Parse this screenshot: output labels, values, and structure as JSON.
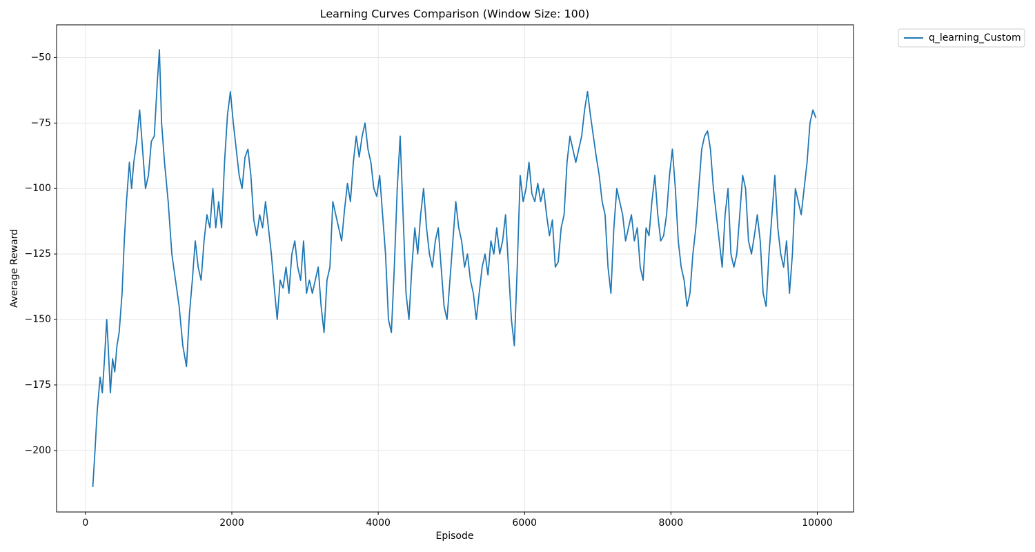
{
  "chart_data": {
    "type": "line",
    "title": "Learning Curves Comparison (Window Size: 100)",
    "xlabel": "Episode",
    "ylabel": "Average Reward",
    "xlim": [
      -395,
      10495
    ],
    "ylim": [
      -223.5,
      -37.5
    ],
    "xticks": [
      0,
      2000,
      4000,
      6000,
      8000,
      10000
    ],
    "yticks": [
      {
        "value": -50,
        "label": "−50"
      },
      {
        "value": -75,
        "label": "−75"
      },
      {
        "value": -100,
        "label": "−100"
      },
      {
        "value": -125,
        "label": "−125"
      },
      {
        "value": -150,
        "label": "−150"
      },
      {
        "value": -175,
        "label": "−175"
      },
      {
        "value": -200,
        "label": "−200"
      }
    ],
    "grid": true,
    "legend": "upper right",
    "x": [
      100,
      130,
      160,
      200,
      230,
      260,
      290,
      310,
      340,
      370,
      400,
      430,
      460,
      500,
      530,
      560,
      600,
      630,
      660,
      700,
      740,
      780,
      820,
      860,
      900,
      940,
      980,
      1010,
      1040,
      1080,
      1130,
      1180,
      1230,
      1280,
      1330,
      1380,
      1420,
      1460,
      1500,
      1540,
      1580,
      1620,
      1660,
      1700,
      1740,
      1780,
      1820,
      1860,
      1900,
      1940,
      1980,
      2020,
      2060,
      2100,
      2140,
      2180,
      2220,
      2260,
      2300,
      2340,
      2380,
      2420,
      2460,
      2500,
      2540,
      2580,
      2620,
      2660,
      2700,
      2740,
      2780,
      2820,
      2860,
      2900,
      2940,
      2980,
      3020,
      3060,
      3100,
      3140,
      3180,
      3220,
      3260,
      3300,
      3340,
      3380,
      3420,
      3460,
      3500,
      3540,
      3580,
      3620,
      3660,
      3700,
      3740,
      3780,
      3820,
      3860,
      3900,
      3940,
      3980,
      4020,
      4060,
      4100,
      4140,
      4180,
      4220,
      4260,
      4300,
      4340,
      4380,
      4420,
      4460,
      4500,
      4540,
      4580,
      4620,
      4660,
      4700,
      4740,
      4780,
      4820,
      4860,
      4900,
      4940,
      4980,
      5020,
      5060,
      5100,
      5140,
      5180,
      5220,
      5260,
      5300,
      5340,
      5380,
      5420,
      5460,
      5500,
      5540,
      5580,
      5620,
      5660,
      5700,
      5740,
      5780,
      5820,
      5860,
      5900,
      5940,
      5980,
      6020,
      6060,
      6100,
      6140,
      6180,
      6220,
      6260,
      6300,
      6340,
      6380,
      6420,
      6460,
      6500,
      6540,
      6580,
      6620,
      6660,
      6700,
      6740,
      6780,
      6820,
      6860,
      6900,
      6940,
      6980,
      7020,
      7060,
      7100,
      7140,
      7180,
      7220,
      7260,
      7300,
      7340,
      7380,
      7420,
      7460,
      7500,
      7540,
      7580,
      7620,
      7660,
      7700,
      7740,
      7780,
      7820,
      7860,
      7900,
      7940,
      7980,
      8020,
      8060,
      8100,
      8140,
      8180,
      8220,
      8260,
      8300,
      8340,
      8380,
      8420,
      8460,
      8500,
      8540,
      8580,
      8620,
      8660,
      8700,
      8740,
      8780,
      8820,
      8860,
      8900,
      8940,
      8980,
      9020,
      9060,
      9100,
      9140,
      9180,
      9220,
      9260,
      9300,
      9340,
      9380,
      9420,
      9460,
      9500,
      9540,
      9580,
      9620,
      9660,
      9700,
      9740,
      9780,
      9820,
      9860,
      9900,
      9940,
      9980
    ],
    "series": [
      {
        "name": "q_learning_Custom",
        "color": "#1f77b4",
        "values": [
          -214,
          -200,
          -185,
          -172,
          -178,
          -165,
          -150,
          -160,
          -178,
          -165,
          -170,
          -160,
          -155,
          -140,
          -120,
          -105,
          -90,
          -100,
          -90,
          -82,
          -70,
          -85,
          -100,
          -95,
          -82,
          -80,
          -60,
          -47,
          -75,
          -90,
          -105,
          -125,
          -135,
          -145,
          -160,
          -168,
          -148,
          -135,
          -120,
          -130,
          -135,
          -120,
          -110,
          -115,
          -100,
          -115,
          -105,
          -115,
          -90,
          -72,
          -63,
          -75,
          -85,
          -95,
          -100,
          -88,
          -85,
          -95,
          -112,
          -118,
          -110,
          -115,
          -105,
          -115,
          -125,
          -138,
          -150,
          -135,
          -138,
          -130,
          -140,
          -125,
          -120,
          -130,
          -135,
          -120,
          -140,
          -135,
          -140,
          -135,
          -130,
          -145,
          -155,
          -135,
          -130,
          -105,
          -110,
          -115,
          -120,
          -108,
          -98,
          -105,
          -90,
          -80,
          -88,
          -80,
          -75,
          -85,
          -90,
          -100,
          -103,
          -95,
          -110,
          -125,
          -150,
          -155,
          -130,
          -100,
          -80,
          -110,
          -140,
          -150,
          -130,
          -115,
          -125,
          -110,
          -100,
          -115,
          -125,
          -130,
          -120,
          -115,
          -130,
          -145,
          -150,
          -135,
          -120,
          -105,
          -115,
          -120,
          -130,
          -125,
          -135,
          -140,
          -150,
          -140,
          -130,
          -125,
          -133,
          -120,
          -125,
          -115,
          -125,
          -120,
          -110,
          -130,
          -150,
          -160,
          -130,
          -95,
          -105,
          -100,
          -90,
          -102,
          -105,
          -98,
          -105,
          -100,
          -110,
          -118,
          -112,
          -130,
          -128,
          -115,
          -110,
          -90,
          -80,
          -85,
          -90,
          -85,
          -80,
          -70,
          -63,
          -72,
          -80,
          -88,
          -95,
          -105,
          -110,
          -130,
          -140,
          -115,
          -100,
          -105,
          -110,
          -120,
          -115,
          -110,
          -120,
          -115,
          -130,
          -135,
          -115,
          -118,
          -105,
          -95,
          -110,
          -120,
          -118,
          -110,
          -95,
          -85,
          -100,
          -120,
          -130,
          -135,
          -145,
          -140,
          -125,
          -115,
          -100,
          -85,
          -80,
          -78,
          -85,
          -100,
          -110,
          -120,
          -130,
          -110,
          -100,
          -125,
          -130,
          -125,
          -110,
          -95,
          -100,
          -120,
          -125,
          -118,
          -110,
          -120,
          -140,
          -145,
          -125,
          -110,
          -95,
          -115,
          -125,
          -130,
          -120,
          -140,
          -125,
          -100,
          -105,
          -110,
          -100,
          -90,
          -75,
          -70,
          -73
        ]
      }
    ]
  }
}
